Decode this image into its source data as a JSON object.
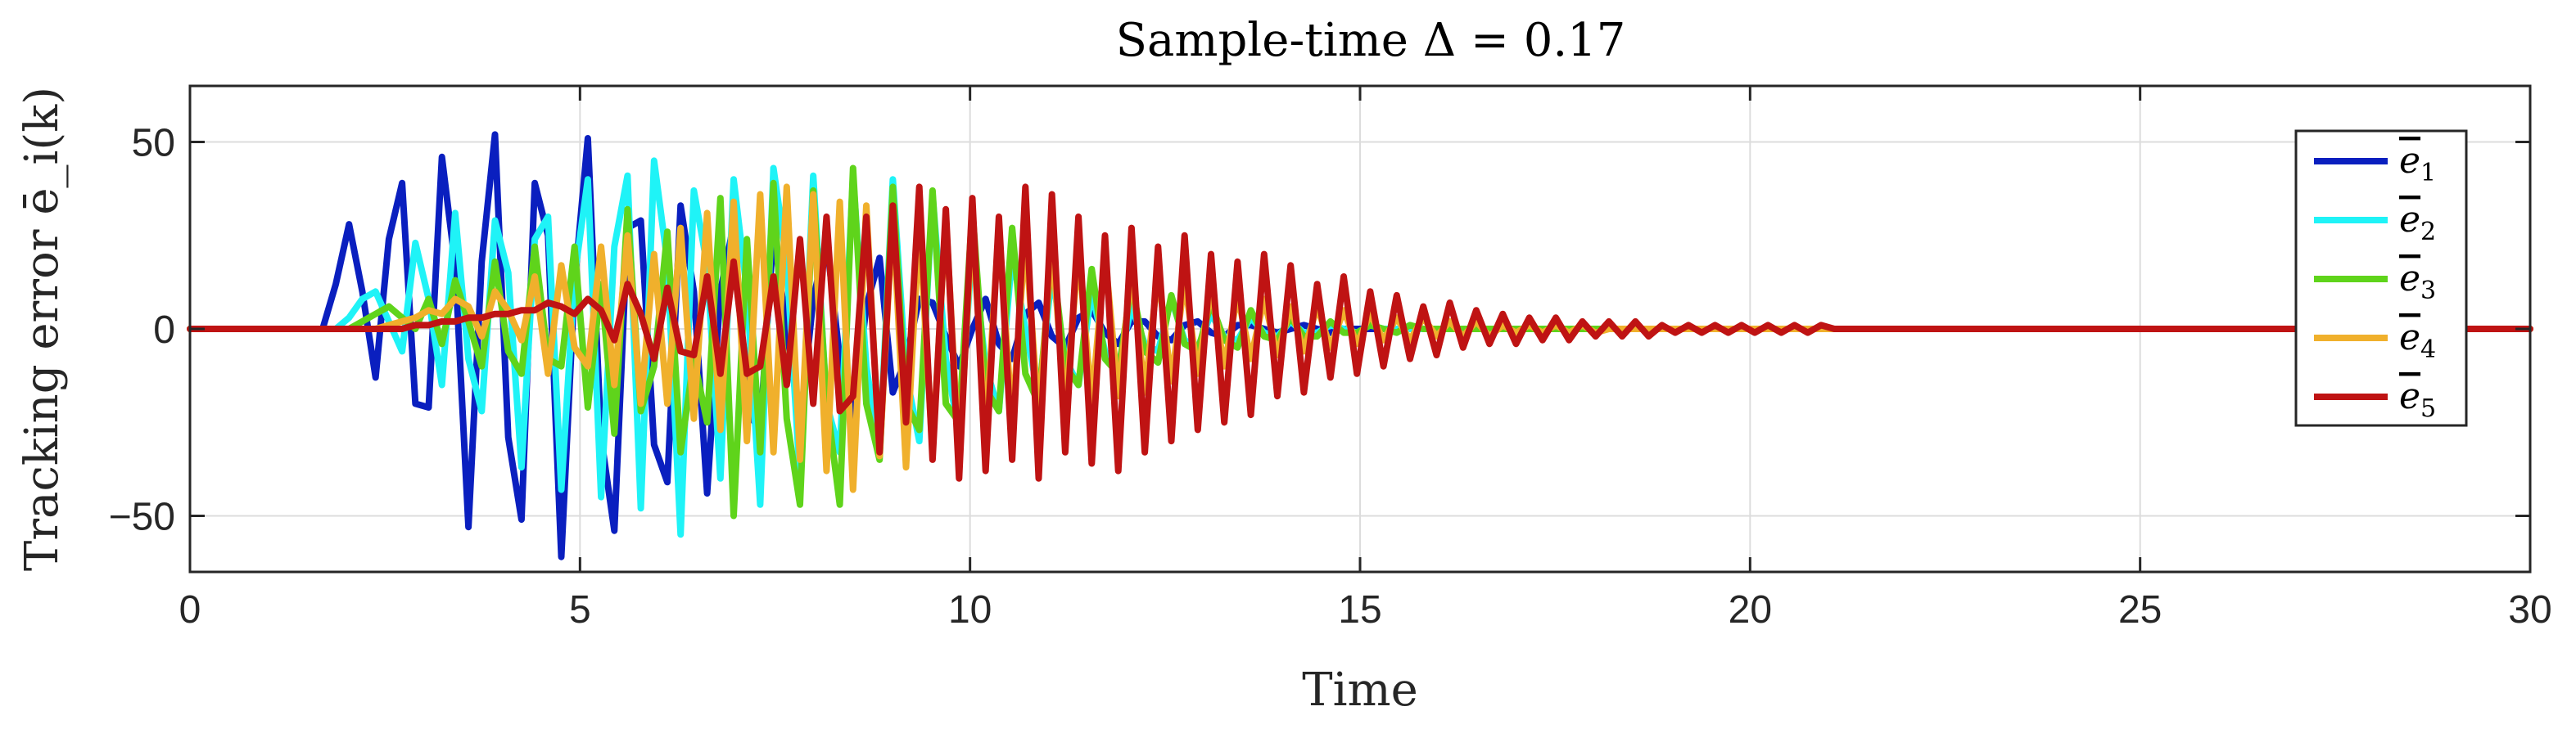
{
  "chart_data": {
    "type": "line",
    "title": "Sample-time Δ = 0.17",
    "xlabel": "Time",
    "ylabel": "Tracking error ē_i(k)",
    "xlim": [
      0,
      30
    ],
    "ylim": [
      -65,
      65
    ],
    "xticks": [
      0,
      5,
      10,
      15,
      20,
      25,
      30
    ],
    "xtick_labels": [
      "0",
      "5",
      "10",
      "15",
      "20",
      "25",
      "30"
    ],
    "yticks": [
      -50,
      0,
      50
    ],
    "ytick_labels": [
      "−50",
      "0",
      "50"
    ],
    "grid": true,
    "legend_position": "top-right",
    "sample_time": 0.17,
    "series": [
      {
        "name": "ē1",
        "base": "e",
        "sub": "1",
        "color": "#0a1fbf",
        "start": 0.0,
        "dt": 0.17,
        "values": [
          0,
          0,
          0,
          0,
          0,
          0,
          0,
          0,
          0,
          0,
          0,
          12,
          28,
          10,
          -13,
          24,
          39,
          -20,
          -21,
          46,
          17,
          -53,
          18,
          52,
          -29,
          -51,
          39,
          25,
          -61,
          12,
          51,
          -29,
          -54,
          27,
          29,
          -31,
          -41,
          33,
          10,
          -44,
          10,
          28,
          -22,
          -27,
          26,
          0,
          -26,
          8,
          24,
          -8,
          -24,
          6,
          19,
          -17,
          -8,
          8,
          7,
          -2,
          -10,
          0,
          8,
          -4,
          -8,
          4,
          7,
          -2,
          -5,
          3,
          5,
          -1,
          -4,
          2,
          2,
          -2,
          -3,
          1,
          2,
          -1,
          -2,
          1,
          1,
          0,
          -1,
          0,
          1,
          0,
          -1,
          0,
          0,
          0,
          0,
          0,
          0,
          0,
          0,
          0,
          0,
          0,
          0,
          0,
          0,
          0,
          0,
          0,
          0,
          0,
          0,
          0,
          0,
          0,
          0,
          0,
          0,
          0,
          0,
          0,
          0,
          0,
          0,
          0,
          0,
          0,
          0,
          0,
          0,
          0,
          0,
          0,
          0,
          0,
          0,
          0,
          0,
          0,
          0,
          0,
          0,
          0,
          0,
          0,
          0,
          0,
          0,
          0,
          0,
          0,
          0,
          0,
          0,
          0,
          0,
          0,
          0,
          0,
          0,
          0,
          0,
          0,
          0,
          0,
          0,
          0,
          0,
          0,
          0,
          0,
          0,
          0,
          0,
          0,
          0,
          0,
          0,
          0,
          0,
          0,
          0,
          0,
          0,
          0,
          0
        ]
      },
      {
        "name": "ē2",
        "base": "e",
        "sub": "2",
        "color": "#1ff3f7",
        "start": 0.0,
        "dt": 0.17,
        "values": [
          0,
          0,
          0,
          0,
          0,
          0,
          0,
          0,
          0,
          0,
          0,
          0,
          3,
          8,
          10,
          2,
          -6,
          23,
          8,
          -15,
          31,
          -8,
          -22,
          29,
          15,
          -37,
          24,
          30,
          -43,
          14,
          40,
          -45,
          22,
          41,
          -48,
          45,
          18,
          -55,
          37,
          17,
          -40,
          40,
          10,
          -47,
          43,
          18,
          -40,
          41,
          -20,
          -33,
          41,
          -10,
          -33,
          40,
          -12,
          -30,
          36,
          -8,
          -28,
          22,
          -10,
          -22,
          20,
          0,
          -18,
          15,
          -8,
          -15,
          10,
          -6,
          -10,
          6,
          -4,
          -6,
          8,
          -3,
          -5,
          4,
          -2,
          -3,
          3,
          -1,
          -2,
          2,
          -1,
          -1,
          1,
          0,
          -1,
          1,
          0,
          0,
          0,
          0,
          0,
          0,
          0,
          0,
          0,
          0,
          0,
          0,
          0,
          0,
          0,
          0,
          0,
          0,
          0,
          0,
          0,
          0,
          0,
          0,
          0,
          0,
          0,
          0,
          0,
          0,
          0,
          0,
          0,
          0,
          0,
          0,
          0,
          0,
          0,
          0,
          0,
          0,
          0,
          0,
          0,
          0,
          0,
          0,
          0,
          0,
          0,
          0,
          0,
          0,
          0,
          0,
          0,
          0,
          0,
          0,
          0,
          0,
          0,
          0,
          0,
          0,
          0,
          0,
          0,
          0,
          0,
          0,
          0,
          0,
          0,
          0,
          0,
          0,
          0,
          0,
          0,
          0,
          0,
          0,
          0,
          0,
          0,
          0
        ]
      },
      {
        "name": "ē3",
        "base": "e",
        "sub": "3",
        "color": "#5fd41b",
        "start": 0.0,
        "dt": 0.17,
        "values": [
          0,
          0,
          0,
          0,
          0,
          0,
          0,
          0,
          0,
          0,
          0,
          0,
          0,
          2,
          4,
          6,
          3,
          0,
          8,
          -4,
          13,
          2,
          -10,
          18,
          -6,
          -12,
          22,
          -8,
          -10,
          22,
          -21,
          12,
          -28,
          32,
          -22,
          -10,
          26,
          -33,
          -8,
          -25,
          35,
          -50,
          24,
          -33,
          39,
          -24,
          -47,
          37,
          -19,
          -47,
          43,
          -20,
          -35,
          38,
          -20,
          -27,
          37,
          -20,
          -25,
          32,
          -16,
          -22,
          27,
          -12,
          -20,
          20,
          -10,
          -15,
          16,
          -8,
          -12,
          12,
          -6,
          -9,
          9,
          -4,
          -6,
          7,
          -3,
          -5,
          5,
          -2,
          -3,
          3,
          -2,
          -2,
          2,
          -1,
          -1,
          1,
          0,
          -1,
          1,
          0,
          0,
          0,
          0,
          0,
          0,
          0,
          0,
          0,
          0,
          0,
          0,
          0,
          0,
          0,
          0,
          0,
          0,
          0,
          0,
          0,
          0,
          0,
          0,
          0,
          0,
          0,
          0,
          0,
          0,
          0,
          0,
          0,
          0,
          0,
          0,
          0,
          0,
          0,
          0,
          0,
          0,
          0,
          0,
          0,
          0,
          0,
          0,
          0,
          0,
          0,
          0,
          0,
          0,
          0,
          0,
          0,
          0,
          0,
          0,
          0,
          0,
          0,
          0,
          0,
          0,
          0,
          0,
          0,
          0,
          0,
          0,
          0,
          0,
          0,
          0,
          0,
          0,
          0,
          0,
          0,
          0,
          0,
          0,
          0
        ]
      },
      {
        "name": "ē4",
        "base": "e",
        "sub": "4",
        "color": "#f0b02c",
        "start": 0.0,
        "dt": 0.17,
        "values": [
          0,
          0,
          0,
          0,
          0,
          0,
          0,
          0,
          0,
          0,
          0,
          0,
          0,
          0,
          0,
          1,
          2,
          3,
          5,
          4,
          8,
          6,
          -2,
          10,
          5,
          -3,
          14,
          -12,
          17,
          -5,
          -10,
          22,
          -15,
          25,
          -20,
          20,
          -20,
          27,
          -24,
          31,
          -27,
          34,
          -30,
          36,
          -33,
          38,
          -35,
          36,
          -38,
          34,
          -43,
          33,
          -34,
          31,
          -37,
          28,
          -33,
          30,
          -35,
          28,
          -28,
          27,
          -25,
          25,
          -24,
          23,
          -22,
          21,
          -20,
          20,
          -18,
          16,
          -17,
          15,
          -14,
          13,
          -12,
          11,
          -10,
          9,
          -8,
          8,
          -7,
          6,
          -6,
          6,
          -5,
          5,
          -4,
          4,
          -3,
          3,
          -3,
          3,
          -2,
          2,
          -2,
          2,
          -2,
          1,
          -1,
          1,
          -1,
          1,
          -1,
          1,
          -1,
          0,
          0,
          0,
          0,
          0,
          0,
          0,
          0,
          0,
          0,
          0,
          0,
          0,
          0,
          0,
          0,
          0,
          0,
          0,
          0,
          0,
          0,
          0,
          0,
          0,
          0,
          0,
          0,
          0,
          0,
          0,
          0,
          0,
          0,
          0,
          0,
          0,
          0,
          0,
          0,
          0,
          0,
          0,
          0,
          0,
          0,
          0,
          0,
          0,
          0,
          0,
          0,
          0,
          0,
          0,
          0,
          0,
          0,
          0,
          0,
          0,
          0,
          0,
          0,
          0,
          0,
          0,
          0,
          0,
          0,
          0,
          0
        ]
      },
      {
        "name": "ē5",
        "base": "e",
        "sub": "5",
        "color": "#bf1313",
        "start": 0.0,
        "dt": 0.17,
        "values": [
          0,
          0,
          0,
          0,
          0,
          0,
          0,
          0,
          0,
          0,
          0,
          0,
          0,
          0,
          0,
          0,
          0,
          1,
          1,
          2,
          2,
          3,
          3,
          4,
          4,
          5,
          5,
          7,
          6,
          4,
          8,
          5,
          -3,
          12,
          4,
          -8,
          11,
          -6,
          -7,
          14,
          -12,
          18,
          -12,
          -10,
          14,
          -15,
          24,
          -20,
          30,
          -22,
          -18,
          30,
          -33,
          33,
          -25,
          38,
          -35,
          32,
          -40,
          35,
          -38,
          30,
          -35,
          38,
          -40,
          36,
          -33,
          30,
          -36,
          25,
          -38,
          27,
          -33,
          22,
          -30,
          25,
          -27,
          20,
          -25,
          18,
          -23,
          20,
          -18,
          17,
          -17,
          12,
          -13,
          14,
          -12,
          10,
          -10,
          9,
          -8,
          6,
          -7,
          7,
          -5,
          5,
          -4,
          4,
          -4,
          3,
          -3,
          3,
          -3,
          2,
          -2,
          2,
          -2,
          2,
          -2,
          1,
          -1,
          1,
          -1,
          1,
          -1,
          1,
          -1,
          1,
          -1,
          1,
          -1,
          1,
          0,
          0,
          0,
          0,
          0,
          0,
          0,
          0,
          0,
          0,
          0,
          0,
          0,
          0,
          0,
          0,
          0,
          0,
          0,
          0,
          0,
          0,
          0,
          0,
          0,
          0,
          0,
          0,
          0,
          0,
          0,
          0,
          0,
          0,
          0,
          0,
          0,
          0,
          0,
          0,
          0,
          0,
          0,
          0,
          0,
          0,
          0,
          0,
          0,
          0,
          0,
          0,
          0,
          0,
          0,
          0,
          0,
          0,
          0,
          0,
          0,
          0,
          0,
          0
        ]
      }
    ]
  }
}
